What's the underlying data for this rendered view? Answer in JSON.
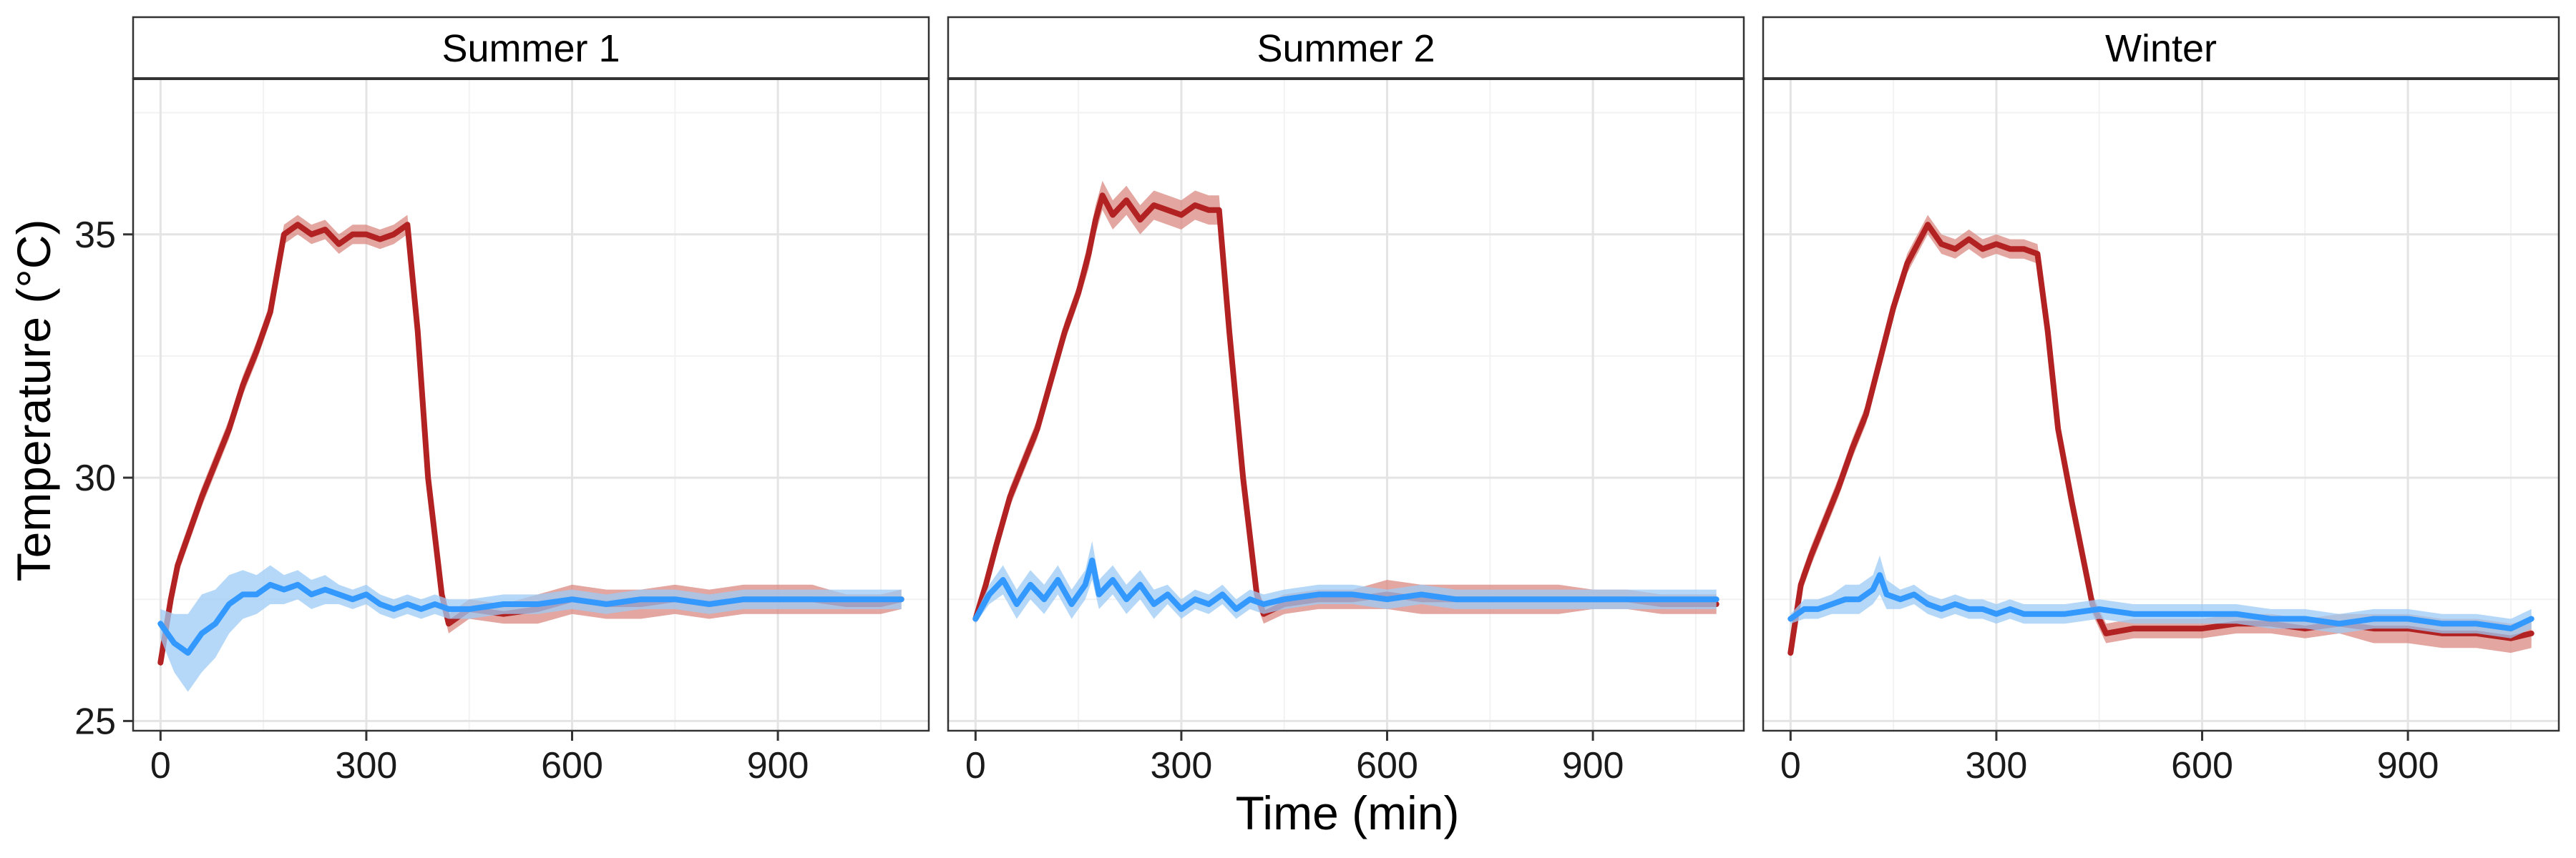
{
  "chart_data": {
    "type": "line",
    "xlabel": "Time (min)",
    "ylabel": "Temperature (°C)",
    "xlim": [
      -40,
      1120
    ],
    "ylim": [
      24.8,
      38.2
    ],
    "xticks": [
      0,
      300,
      600,
      900
    ],
    "yticks": [
      25,
      30,
      35
    ],
    "grid": true,
    "legend": "none",
    "colors": {
      "red_series": "#B22222",
      "blue_series": "#3399FF",
      "red_band": "#D98880",
      "blue_band": "#9ECBF5"
    },
    "panels": [
      {
        "title": "Summer 1",
        "series": [
          {
            "color": "#B22222",
            "x": [
              0,
              15,
              25,
              40,
              60,
              80,
              100,
              120,
              140,
              160,
              170,
              180,
              200,
              220,
              240,
              260,
              280,
              300,
              320,
              340,
              360,
              375,
              390,
              410,
              420,
              450,
              500,
              550,
              600,
              650,
              700,
              750,
              800,
              850,
              900,
              950,
              1000,
              1050,
              1080
            ],
            "y": [
              26.2,
              27.5,
              28.2,
              28.8,
              29.6,
              30.3,
              31.0,
              31.9,
              32.6,
              33.4,
              34.2,
              35.0,
              35.2,
              35.0,
              35.1,
              34.8,
              35.0,
              35.0,
              34.9,
              35.0,
              35.2,
              33.0,
              30.0,
              27.6,
              27.0,
              27.3,
              27.2,
              27.3,
              27.5,
              27.4,
              27.4,
              27.5,
              27.4,
              27.5,
              27.5,
              27.5,
              27.4,
              27.4,
              27.5
            ],
            "band": [
              0.1,
              0.2,
              0.2,
              0.2,
              0.2,
              0.2,
              0.2,
              0.2,
              0.2,
              0.2,
              0.2,
              0.2,
              0.2,
              0.2,
              0.2,
              0.2,
              0.2,
              0.2,
              0.2,
              0.2,
              0.2,
              0.2,
              0.2,
              0.2,
              0.2,
              0.2,
              0.2,
              0.3,
              0.3,
              0.3,
              0.3,
              0.3,
              0.3,
              0.3,
              0.3,
              0.3,
              0.2,
              0.2,
              0.2
            ]
          },
          {
            "color": "#3399FF",
            "x": [
              0,
              20,
              40,
              60,
              80,
              100,
              120,
              140,
              160,
              180,
              200,
              220,
              240,
              260,
              280,
              300,
              320,
              340,
              360,
              380,
              400,
              420,
              450,
              500,
              550,
              600,
              650,
              700,
              750,
              800,
              850,
              900,
              950,
              1000,
              1050,
              1080
            ],
            "y": [
              27.0,
              26.6,
              26.4,
              26.8,
              27.0,
              27.4,
              27.6,
              27.6,
              27.8,
              27.7,
              27.8,
              27.6,
              27.7,
              27.6,
              27.5,
              27.6,
              27.4,
              27.3,
              27.4,
              27.3,
              27.4,
              27.3,
              27.3,
              27.4,
              27.4,
              27.5,
              27.4,
              27.5,
              27.5,
              27.4,
              27.5,
              27.5,
              27.5,
              27.5,
              27.5,
              27.5
            ],
            "band": [
              0.3,
              0.6,
              0.8,
              0.8,
              0.7,
              0.6,
              0.5,
              0.4,
              0.4,
              0.3,
              0.3,
              0.3,
              0.3,
              0.2,
              0.2,
              0.2,
              0.2,
              0.2,
              0.2,
              0.2,
              0.2,
              0.2,
              0.2,
              0.2,
              0.2,
              0.2,
              0.2,
              0.2,
              0.2,
              0.2,
              0.2,
              0.2,
              0.2,
              0.2,
              0.2,
              0.2
            ]
          }
        ]
      },
      {
        "title": "Summer 2",
        "series": [
          {
            "color": "#B22222",
            "x": [
              0,
              15,
              30,
              50,
              70,
              90,
              110,
              130,
              150,
              165,
              175,
              185,
              200,
              220,
              240,
              260,
              280,
              300,
              320,
              340,
              355,
              370,
              390,
              410,
              420,
              450,
              500,
              550,
              600,
              650,
              700,
              750,
              800,
              850,
              900,
              950,
              1000,
              1050,
              1080
            ],
            "y": [
              27.1,
              27.8,
              28.6,
              29.6,
              30.3,
              31.0,
              32.0,
              33.0,
              33.8,
              34.6,
              35.3,
              35.8,
              35.4,
              35.7,
              35.3,
              35.6,
              35.5,
              35.4,
              35.6,
              35.5,
              35.5,
              33.0,
              30.0,
              27.6,
              27.2,
              27.4,
              27.5,
              27.5,
              27.6,
              27.5,
              27.5,
              27.5,
              27.5,
              27.5,
              27.5,
              27.5,
              27.4,
              27.4,
              27.4
            ],
            "band": [
              0.1,
              0.2,
              0.2,
              0.2,
              0.2,
              0.2,
              0.2,
              0.2,
              0.2,
              0.3,
              0.3,
              0.3,
              0.3,
              0.3,
              0.3,
              0.3,
              0.3,
              0.3,
              0.3,
              0.3,
              0.3,
              0.2,
              0.2,
              0.2,
              0.2,
              0.2,
              0.2,
              0.2,
              0.3,
              0.3,
              0.3,
              0.3,
              0.3,
              0.3,
              0.2,
              0.2,
              0.2,
              0.2,
              0.2
            ]
          },
          {
            "color": "#3399FF",
            "x": [
              0,
              20,
              40,
              60,
              80,
              100,
              120,
              140,
              160,
              170,
              180,
              200,
              220,
              240,
              260,
              280,
              300,
              320,
              340,
              360,
              380,
              400,
              420,
              450,
              500,
              550,
              600,
              650,
              700,
              750,
              800,
              850,
              900,
              950,
              1000,
              1050,
              1080
            ],
            "y": [
              27.1,
              27.6,
              27.9,
              27.4,
              27.8,
              27.5,
              27.9,
              27.4,
              27.8,
              28.3,
              27.6,
              27.9,
              27.5,
              27.8,
              27.4,
              27.6,
              27.3,
              27.5,
              27.4,
              27.6,
              27.3,
              27.5,
              27.4,
              27.5,
              27.6,
              27.6,
              27.5,
              27.6,
              27.5,
              27.5,
              27.5,
              27.5,
              27.5,
              27.5,
              27.5,
              27.5,
              27.5
            ],
            "band": [
              0.1,
              0.2,
              0.3,
              0.3,
              0.3,
              0.3,
              0.3,
              0.3,
              0.3,
              0.4,
              0.3,
              0.3,
              0.3,
              0.3,
              0.3,
              0.2,
              0.2,
              0.2,
              0.2,
              0.2,
              0.2,
              0.2,
              0.2,
              0.2,
              0.2,
              0.2,
              0.2,
              0.2,
              0.2,
              0.2,
              0.2,
              0.2,
              0.2,
              0.2,
              0.2,
              0.2,
              0.2
            ]
          }
        ]
      },
      {
        "title": "Winter",
        "series": [
          {
            "color": "#B22222",
            "x": [
              0,
              15,
              30,
              50,
              70,
              90,
              110,
              130,
              150,
              170,
              185,
              200,
              220,
              240,
              260,
              280,
              300,
              320,
              340,
              360,
              375,
              390,
              410,
              420,
              440,
              460,
              500,
              550,
              600,
              650,
              700,
              750,
              800,
              850,
              900,
              950,
              1000,
              1050,
              1080
            ],
            "y": [
              26.4,
              27.8,
              28.4,
              29.1,
              29.8,
              30.6,
              31.3,
              32.4,
              33.5,
              34.4,
              34.8,
              35.2,
              34.8,
              34.7,
              34.9,
              34.7,
              34.8,
              34.7,
              34.7,
              34.6,
              33.0,
              31.0,
              29.5,
              28.8,
              27.4,
              26.8,
              26.9,
              26.9,
              26.9,
              27.0,
              27.0,
              26.9,
              27.0,
              26.9,
              26.9,
              26.8,
              26.8,
              26.7,
              26.8
            ],
            "band": [
              0.1,
              0.2,
              0.2,
              0.2,
              0.2,
              0.2,
              0.2,
              0.2,
              0.2,
              0.2,
              0.2,
              0.2,
              0.2,
              0.2,
              0.2,
              0.2,
              0.2,
              0.2,
              0.2,
              0.2,
              0.2,
              0.2,
              0.2,
              0.2,
              0.2,
              0.2,
              0.2,
              0.2,
              0.2,
              0.2,
              0.2,
              0.2,
              0.2,
              0.3,
              0.3,
              0.3,
              0.3,
              0.3,
              0.3
            ]
          },
          {
            "color": "#3399FF",
            "x": [
              0,
              20,
              40,
              60,
              80,
              100,
              120,
              130,
              140,
              160,
              180,
              200,
              220,
              240,
              260,
              280,
              300,
              320,
              340,
              360,
              400,
              450,
              500,
              550,
              600,
              650,
              700,
              750,
              800,
              850,
              900,
              950,
              1000,
              1050,
              1080
            ],
            "y": [
              27.1,
              27.3,
              27.3,
              27.4,
              27.5,
              27.5,
              27.7,
              28.0,
              27.6,
              27.5,
              27.6,
              27.4,
              27.3,
              27.4,
              27.3,
              27.3,
              27.2,
              27.3,
              27.2,
              27.2,
              27.2,
              27.3,
              27.2,
              27.2,
              27.2,
              27.2,
              27.1,
              27.1,
              27.0,
              27.1,
              27.1,
              27.0,
              27.0,
              26.9,
              27.1
            ],
            "band": [
              0.1,
              0.2,
              0.2,
              0.2,
              0.3,
              0.3,
              0.3,
              0.4,
              0.3,
              0.2,
              0.2,
              0.2,
              0.2,
              0.2,
              0.2,
              0.2,
              0.2,
              0.2,
              0.2,
              0.2,
              0.2,
              0.2,
              0.2,
              0.2,
              0.2,
              0.2,
              0.2,
              0.2,
              0.2,
              0.2,
              0.2,
              0.2,
              0.2,
              0.2,
              0.2
            ]
          }
        ]
      }
    ]
  }
}
